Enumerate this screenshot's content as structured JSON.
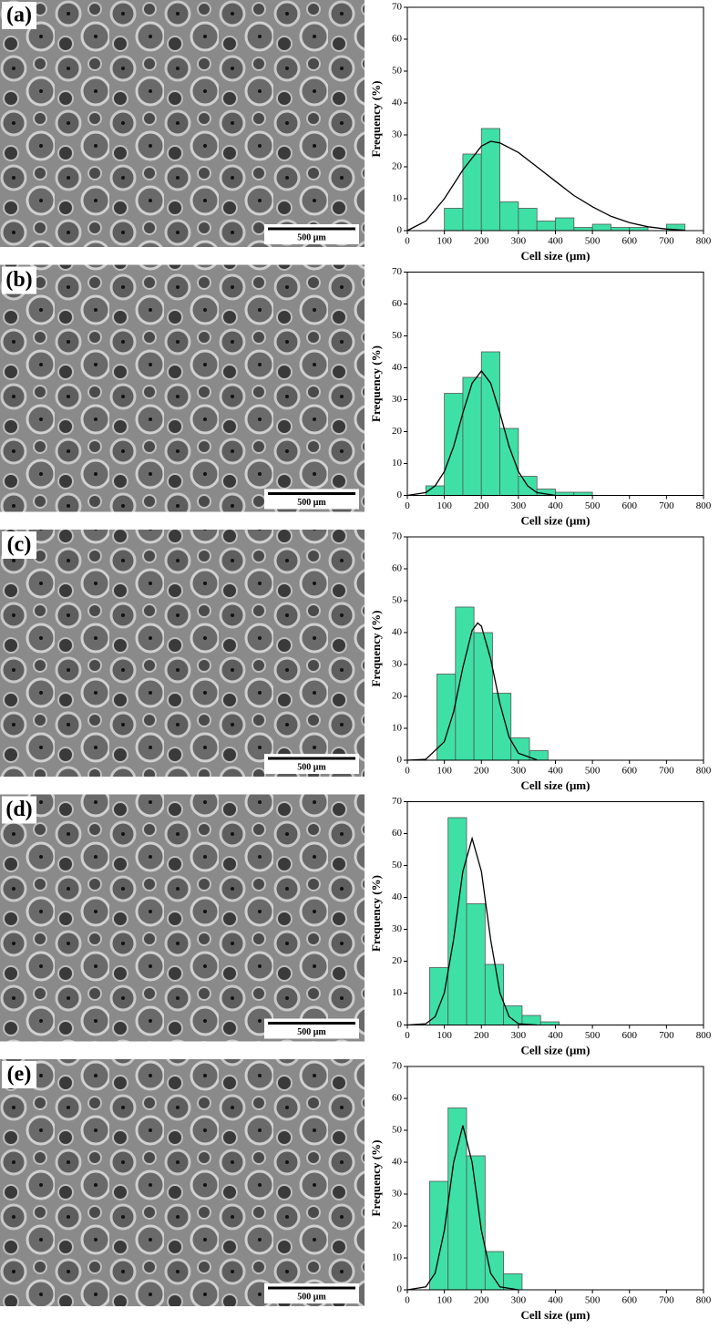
{
  "chart_data": [
    {
      "type": "histogram",
      "panel_label": "(a)",
      "scale_bar": "500 μm",
      "xlabel": "Cell size (μm)",
      "ylabel": "Frequency (%)",
      "bins": [
        100,
        150,
        200,
        250,
        300,
        350,
        400,
        450,
        500,
        550,
        600,
        650,
        700,
        750
      ],
      "values": [
        7,
        24,
        32,
        9,
        7,
        3,
        4,
        1,
        2,
        1,
        1,
        0,
        2
      ],
      "color": "#3fe0a6",
      "fit": {
        "x": [
          0,
          50,
          100,
          150,
          200,
          225,
          250,
          300,
          350,
          400,
          450,
          500,
          550,
          600,
          650,
          700,
          750
        ],
        "values": [
          0,
          3,
          10,
          19,
          26.5,
          28,
          27.5,
          24.5,
          20,
          15.5,
          11,
          7.5,
          4.5,
          2.5,
          1.2,
          0.5,
          0.1
        ],
        "color": "#000000"
      },
      "xlim": [
        0,
        800
      ],
      "ylim": [
        0,
        70
      ],
      "xticks": [
        0,
        100,
        200,
        300,
        400,
        500,
        600,
        700,
        800
      ],
      "yticks": [
        0,
        10,
        20,
        30,
        40,
        50,
        60,
        70
      ]
    },
    {
      "type": "histogram",
      "panel_label": "(b)",
      "scale_bar": "500 μm",
      "xlabel": "Cell size (μm)",
      "ylabel": "Frequency (%)",
      "bins": [
        50,
        100,
        150,
        200,
        250,
        300,
        350,
        400,
        450,
        500
      ],
      "values": [
        3,
        32,
        37,
        45,
        21,
        6,
        2,
        1,
        1
      ],
      "color": "#3fe0a6",
      "fit": {
        "x": [
          0,
          50,
          75,
          100,
          125,
          150,
          175,
          200,
          225,
          250,
          275,
          300,
          325,
          350,
          400
        ],
        "values": [
          0,
          0.9,
          3,
          7.5,
          15.3,
          25.8,
          35.2,
          39,
          35.2,
          25.8,
          15.3,
          7.5,
          3,
          0.9,
          0
        ],
        "color": "#000000"
      },
      "xlim": [
        0,
        800
      ],
      "ylim": [
        0,
        70
      ],
      "xticks": [
        0,
        100,
        200,
        300,
        400,
        500,
        600,
        700,
        800
      ],
      "yticks": [
        0,
        10,
        20,
        30,
        40,
        50,
        60,
        70
      ]
    },
    {
      "type": "histogram",
      "panel_label": "(c)",
      "scale_bar": "500 μm",
      "xlabel": "Cell size (μm)",
      "ylabel": "Frequency (%)",
      "bins": [
        80,
        130,
        180,
        230,
        280,
        330,
        380
      ],
      "values": [
        27,
        48,
        40,
        21,
        7,
        3
      ],
      "color": "#3fe0a6",
      "fit": {
        "x": [
          0,
          50,
          100,
          125,
          150,
          175,
          190,
          200,
          225,
          250,
          275,
          300,
          350
        ],
        "values": [
          0,
          0.3,
          5.8,
          15.2,
          29,
          40.7,
          43,
          42,
          31.8,
          17.7,
          7.2,
          2.2,
          0.1
        ],
        "color": "#000000"
      },
      "xlim": [
        0,
        800
      ],
      "ylim": [
        0,
        70
      ],
      "xticks": [
        0,
        100,
        200,
        300,
        400,
        500,
        600,
        700,
        800
      ],
      "yticks": [
        0,
        10,
        20,
        30,
        40,
        50,
        60,
        70
      ]
    },
    {
      "type": "histogram",
      "panel_label": "(d)",
      "scale_bar": "500 μm",
      "xlabel": "Cell size (μm)",
      "ylabel": "Frequency (%)",
      "bins": [
        60,
        110,
        160,
        210,
        260,
        310,
        360,
        410
      ],
      "values": [
        18,
        65,
        38,
        19,
        6,
        3,
        1
      ],
      "color": "#3fe0a6",
      "fit": {
        "x": [
          0,
          50,
          75,
          100,
          125,
          150,
          175,
          200,
          225,
          250,
          275,
          300,
          350
        ],
        "values": [
          0,
          0.4,
          2.6,
          10.1,
          26.8,
          48.1,
          58.5,
          48.1,
          26.8,
          10.1,
          2.6,
          0.4,
          0
        ],
        "color": "#000000"
      },
      "xlim": [
        0,
        800
      ],
      "ylim": [
        0,
        70
      ],
      "xticks": [
        0,
        100,
        200,
        300,
        400,
        500,
        600,
        700,
        800
      ],
      "yticks": [
        0,
        10,
        20,
        30,
        40,
        50,
        60,
        70
      ]
    },
    {
      "type": "histogram",
      "panel_label": "(e)",
      "scale_bar": "500 μm",
      "xlabel": "Cell size (μm)",
      "ylabel": "Frequency (%)",
      "bins": [
        60,
        110,
        160,
        210,
        260,
        310
      ],
      "values": [
        34,
        57,
        42,
        12,
        5
      ],
      "color": "#3fe0a6",
      "fit": {
        "x": [
          0,
          50,
          75,
          100,
          125,
          150,
          175,
          200,
          225,
          250,
          300
        ],
        "values": [
          0,
          0.9,
          5.2,
          18.6,
          39.9,
          51.5,
          39.9,
          18.6,
          5.2,
          0.9,
          0
        ],
        "color": "#000000"
      },
      "xlim": [
        0,
        800
      ],
      "ylim": [
        0,
        70
      ],
      "xticks": [
        0,
        100,
        200,
        300,
        400,
        500,
        600,
        700,
        800
      ],
      "yticks": [
        0,
        10,
        20,
        30,
        40,
        50,
        60,
        70
      ]
    }
  ]
}
